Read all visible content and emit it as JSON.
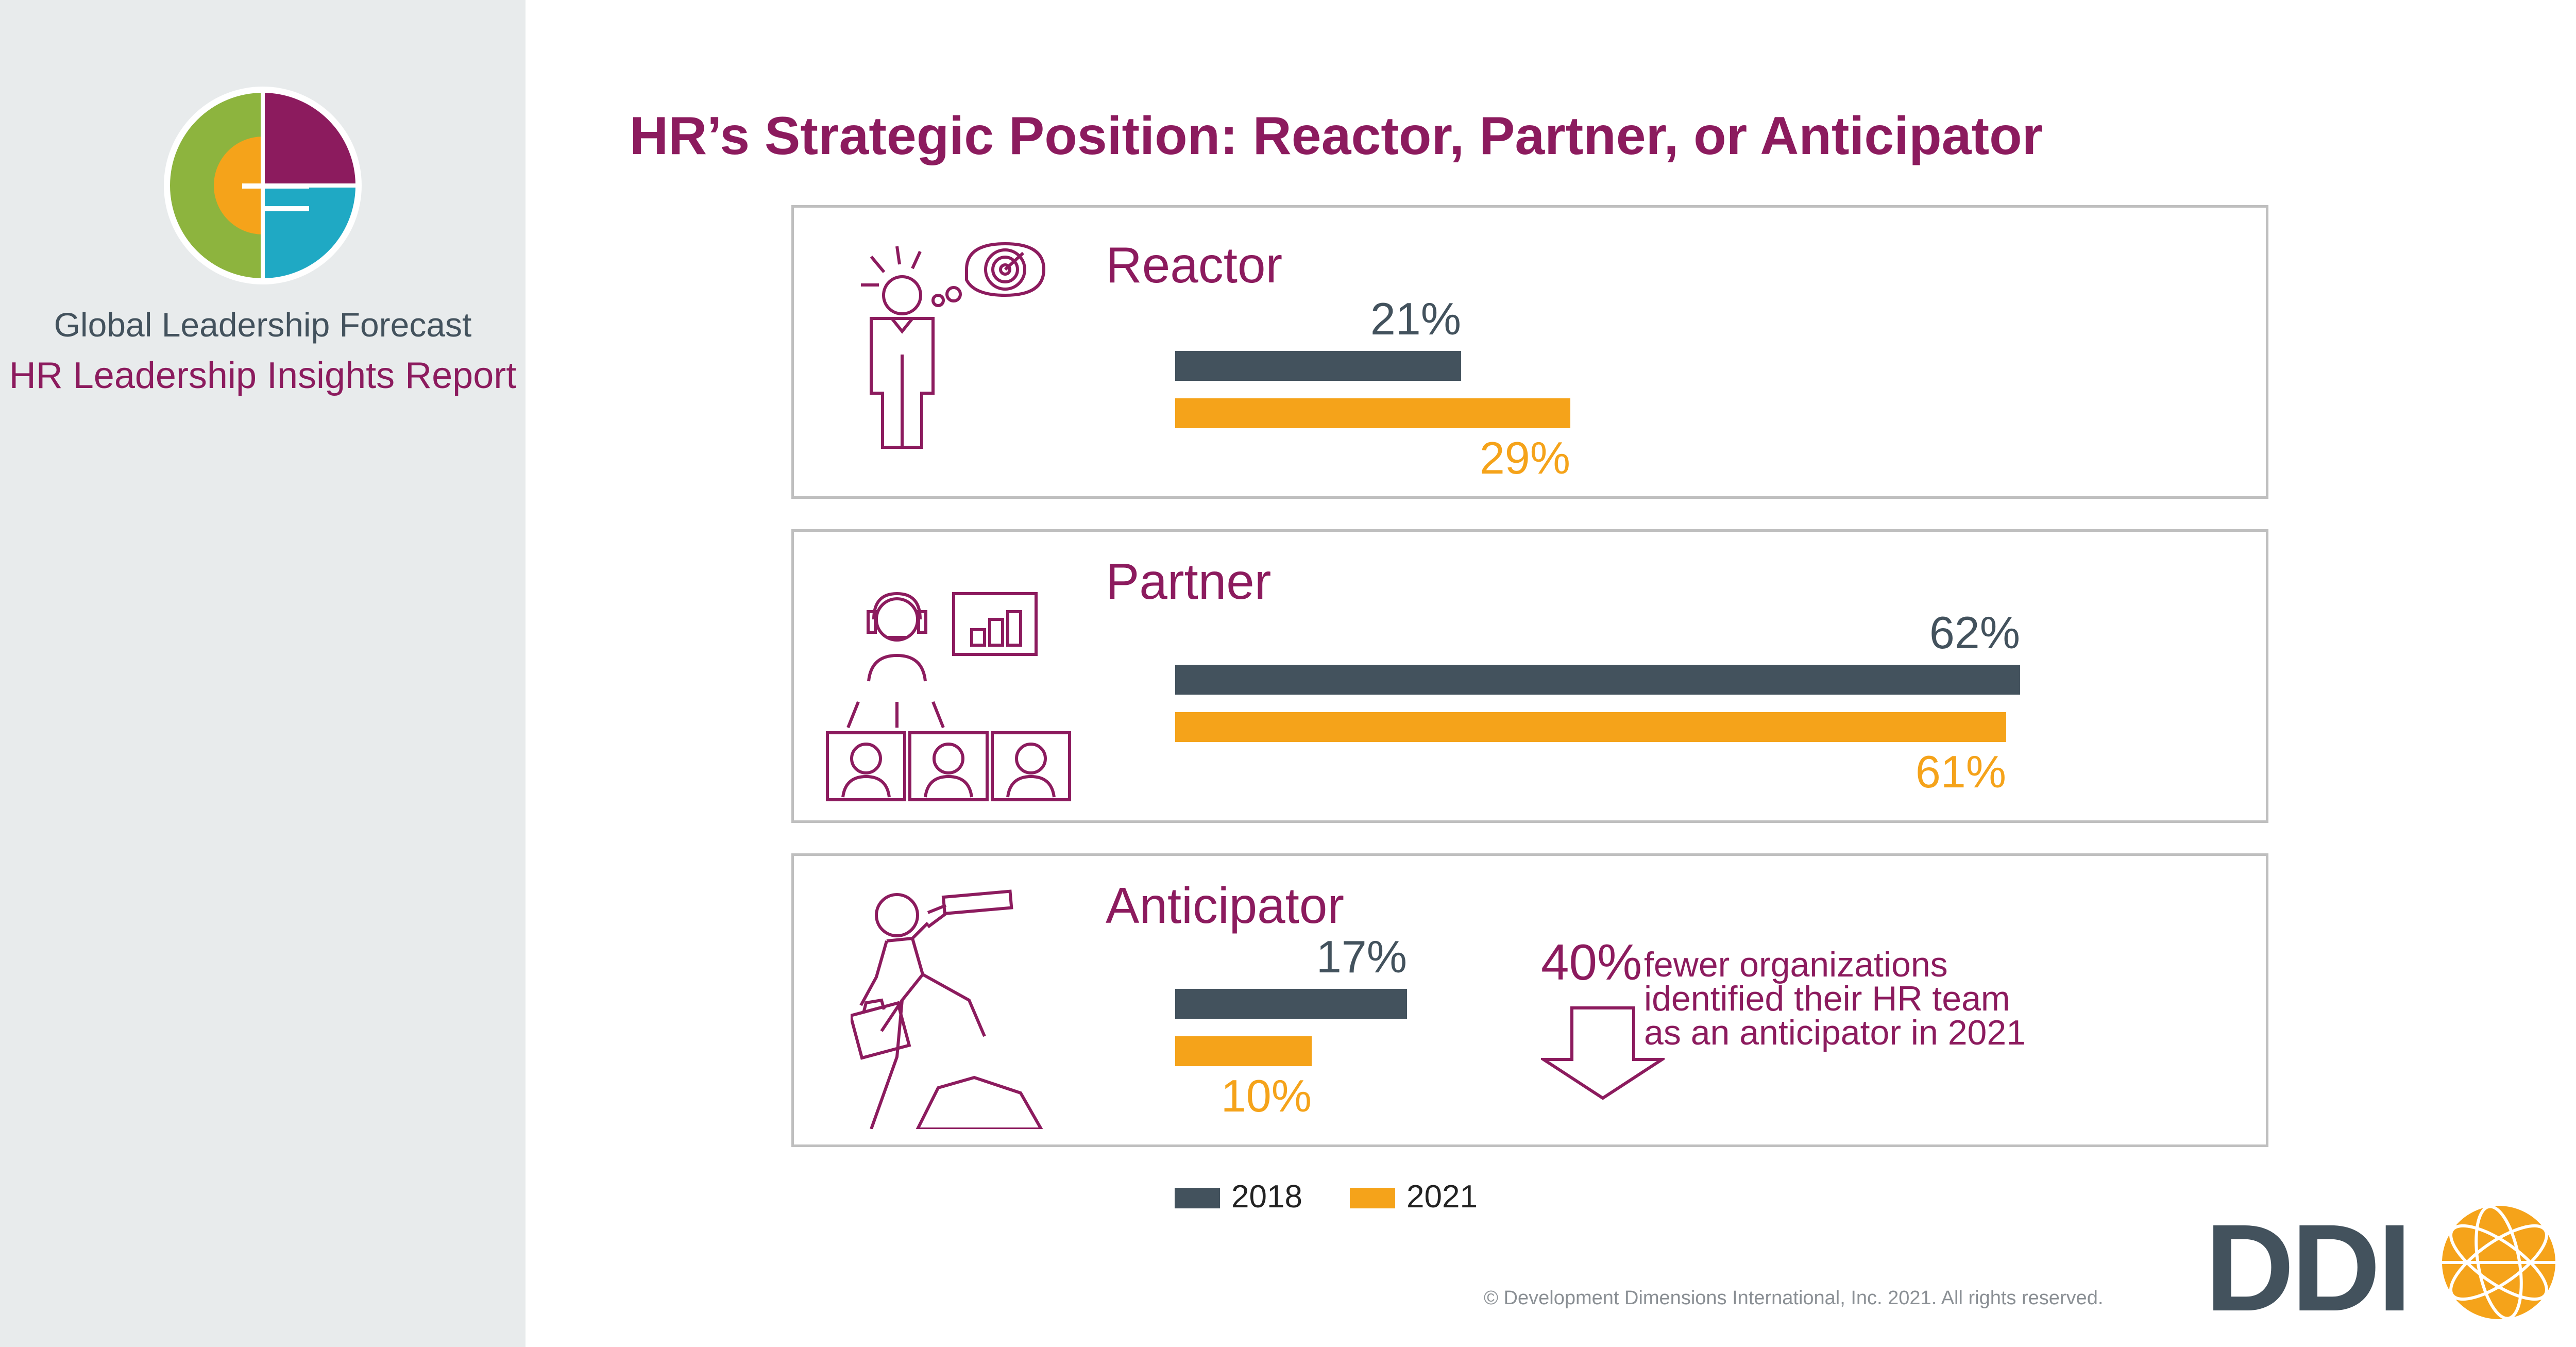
{
  "sidebar": {
    "title": "Global Leadership Forecast",
    "subtitle": "HR Leadership Insights Report"
  },
  "page_title": "HR’s Strategic Position: Reactor, Partner, or Anticipator",
  "colors": {
    "2018": "#43525d",
    "2021": "#f5a31a",
    "accent": "#8c1b5e",
    "green": "#8db43e",
    "teal": "#1fa9c4"
  },
  "chart_data": {
    "type": "bar",
    "orientation": "horizontal",
    "categories": [
      "Reactor",
      "Partner",
      "Anticipator"
    ],
    "series": [
      {
        "name": "2018",
        "values": [
          21,
          62,
          17
        ],
        "labels": [
          "21%",
          "62%",
          "17%"
        ]
      },
      {
        "name": "2021",
        "values": [
          29,
          61,
          10
        ],
        "labels": [
          "29%",
          "61%",
          "10%"
        ]
      }
    ],
    "legend": [
      "2018",
      "2021"
    ],
    "legend_position": "bottom"
  },
  "annotation": {
    "value": "40%",
    "lines": [
      "fewer organizations",
      "identified their HR team",
      "as an anticipator in 2021"
    ],
    "icon": "arrow-down-icon"
  },
  "icons": [
    "reactor-person-icon",
    "partner-team-icon",
    "anticipator-climber-icon"
  ],
  "logo_text": "DDI",
  "copyright": "© Development Dimensions International, Inc. 2021. All rights reserved."
}
